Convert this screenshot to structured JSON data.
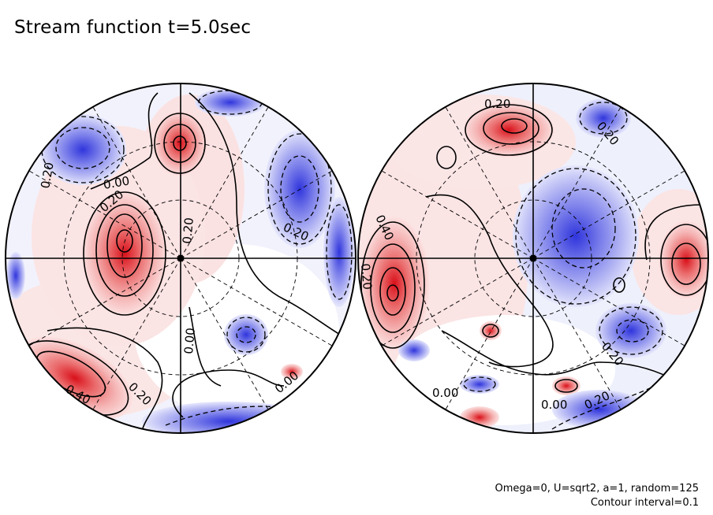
{
  "title": "Stream function t=5.0sec",
  "footer": {
    "params": "Omega=0, U=sqrt2, a=1, random=125",
    "interval": "Contour interval=0.1"
  },
  "colors": {
    "positive": "#e4474a",
    "negative": "#4a4ee0",
    "background": "#ffffff"
  },
  "left_hemisphere": {
    "contour_labels": [
      "0.20",
      "0.00",
      "0.20",
      "0.20",
      "0.20",
      "0.00",
      "0.00",
      "0.20",
      "0.40"
    ]
  },
  "right_hemisphere": {
    "contour_labels": [
      "0.20",
      "0.20",
      "0.40",
      "0.20",
      "0.20",
      "0.00",
      "0.20",
      "0.00"
    ]
  }
}
